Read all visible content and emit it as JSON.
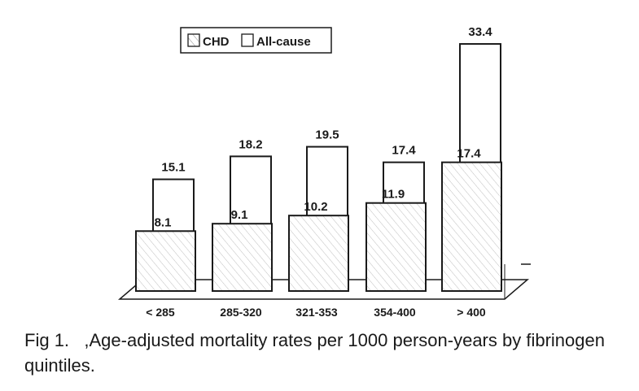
{
  "chart_data": {
    "type": "bar",
    "title": "",
    "xlabel": "",
    "ylabel": "",
    "ylim": [
      0,
      34
    ],
    "grid": false,
    "legend_position": "top-left",
    "categories": [
      "< 285",
      "285-320",
      "321-353",
      "354-400",
      "> 400"
    ],
    "series": [
      {
        "name": "CHD",
        "values": [
          8.1,
          9.1,
          10.2,
          11.9,
          17.4
        ],
        "labels": [
          "8.1",
          "9.1",
          "10.2",
          "11.9",
          "17.4"
        ],
        "fill": "hatched"
      },
      {
        "name": "All-cause",
        "values": [
          15.1,
          18.2,
          19.5,
          17.4,
          33.4
        ],
        "labels": [
          "15.1",
          "18.2",
          "19.5",
          "17.4",
          "33.4"
        ],
        "fill": "open"
      }
    ]
  },
  "caption": {
    "figure_label": "Fig",
    "figure_number": "1.",
    "text": "  ,Age-adjusted mortality rates per 1000 person-years by fibrinogen quintiles."
  },
  "colors": {
    "ink": "#1a1a1a",
    "hatch": "#8a8a8a",
    "background": "#ffffff"
  }
}
